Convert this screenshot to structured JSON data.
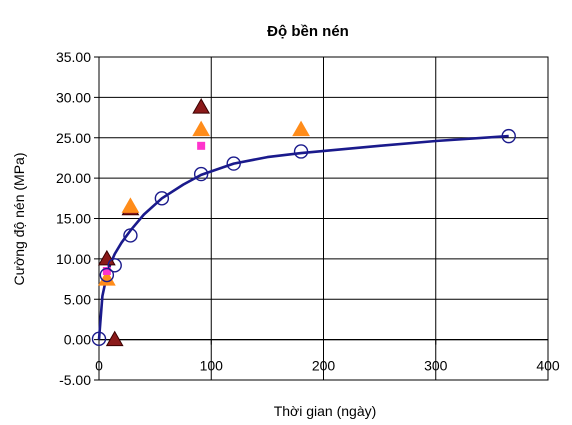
{
  "chart_data": {
    "type": "scatter",
    "title": "Độ bền nén",
    "xlabel": "Thời gian (ngày)",
    "ylabel": "Cường độ nén (MPa)",
    "xlim": [
      0,
      400
    ],
    "ylim": [
      -5,
      35
    ],
    "x_ticks": [
      "0",
      "100",
      "200",
      "300",
      "400"
    ],
    "y_ticks": [
      "-5.00",
      "0.00",
      "5.00",
      "10.00",
      "15.00",
      "20.00",
      "25.00",
      "30.00",
      "35.00"
    ],
    "grid": {
      "x": true,
      "y": true
    },
    "legend": null,
    "series": [
      {
        "marker": "circle-open",
        "color": "#1a1a8c",
        "x": [
          0,
          7,
          14,
          28,
          56,
          91,
          120,
          180,
          365
        ],
        "y": [
          0.1,
          8.0,
          9.2,
          12.9,
          17.5,
          20.5,
          21.8,
          23.3,
          25.2
        ]
      },
      {
        "marker": "triangle",
        "color": "#8b1a1a",
        "x": [
          7,
          14,
          28,
          91
        ],
        "y": [
          10.0,
          0.0,
          16.2,
          28.8
        ]
      },
      {
        "marker": "triangle",
        "color": "#ff8c1a",
        "x": [
          7,
          28,
          91,
          180
        ],
        "y": [
          7.5,
          16.5,
          26.0,
          26.0
        ]
      },
      {
        "marker": "square",
        "color": "#ff33cc",
        "x": [
          7,
          91
        ],
        "y": [
          8.5,
          24.0
        ]
      }
    ],
    "fit_curve": {
      "color": "#1a1a8c",
      "x": [
        0,
        3,
        7,
        10,
        14,
        20,
        28,
        40,
        56,
        75,
        91,
        120,
        150,
        180,
        250,
        300,
        365
      ],
      "y": [
        0,
        5.4,
        8.0,
        9.3,
        10.6,
        12.0,
        13.5,
        15.5,
        17.5,
        19.2,
        20.4,
        21.8,
        22.6,
        23.1,
        24.0,
        24.6,
        25.2
      ]
    }
  }
}
